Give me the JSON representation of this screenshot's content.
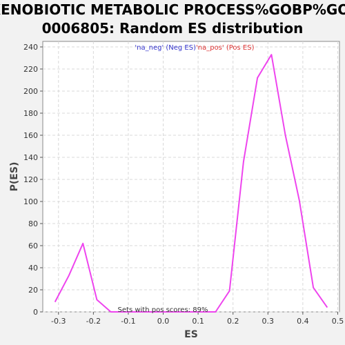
{
  "chart_data": {
    "type": "line",
    "title_line1": "XENOBIOTIC METABOLIC PROCESS%GOBP%GO:",
    "title_line2": "0006805: Random ES distribution",
    "xlabel": "ES",
    "ylabel": "P(ES)",
    "xlim": [
      -0.345,
      0.505
    ],
    "ylim": [
      0,
      245
    ],
    "x_ticks": [
      "-0.3",
      "-0.2",
      "-0.1",
      "0.0",
      "0.1",
      "0.2",
      "0.3",
      "0.4",
      "0.5"
    ],
    "x_tick_values": [
      -0.3,
      -0.2,
      -0.1,
      0.0,
      0.1,
      0.2,
      0.3,
      0.4,
      0.5
    ],
    "y_ticks": [
      "0",
      "20",
      "40",
      "60",
      "80",
      "100",
      "120",
      "140",
      "160",
      "180",
      "200",
      "220",
      "240"
    ],
    "y_tick_values": [
      0,
      20,
      40,
      60,
      80,
      100,
      120,
      140,
      160,
      180,
      200,
      220,
      240
    ],
    "grid": true,
    "legend_placement": "top-center",
    "legend": {
      "neg_label": "'na_neg' (Neg ES)",
      "pos_label": "'na_pos' (Pos ES)",
      "neg_color": "#3333cc",
      "pos_color": "#dd3333"
    },
    "annotation": "Sets with pos scores: 89%",
    "series": [
      {
        "color": "#ee44ee",
        "x": [
          -0.31,
          -0.27,
          -0.23,
          -0.19,
          -0.15,
          -0.11,
          -0.07,
          -0.03,
          0.01,
          0.05,
          0.09,
          0.13,
          0.15,
          0.19,
          0.23,
          0.27,
          0.31,
          0.35,
          0.39,
          0.43,
          0.47
        ],
        "y": [
          9,
          33,
          62,
          11,
          0,
          0,
          0,
          0,
          0,
          0,
          0,
          0,
          0,
          19,
          136,
          212,
          233,
          160,
          101,
          22,
          4
        ]
      }
    ]
  }
}
